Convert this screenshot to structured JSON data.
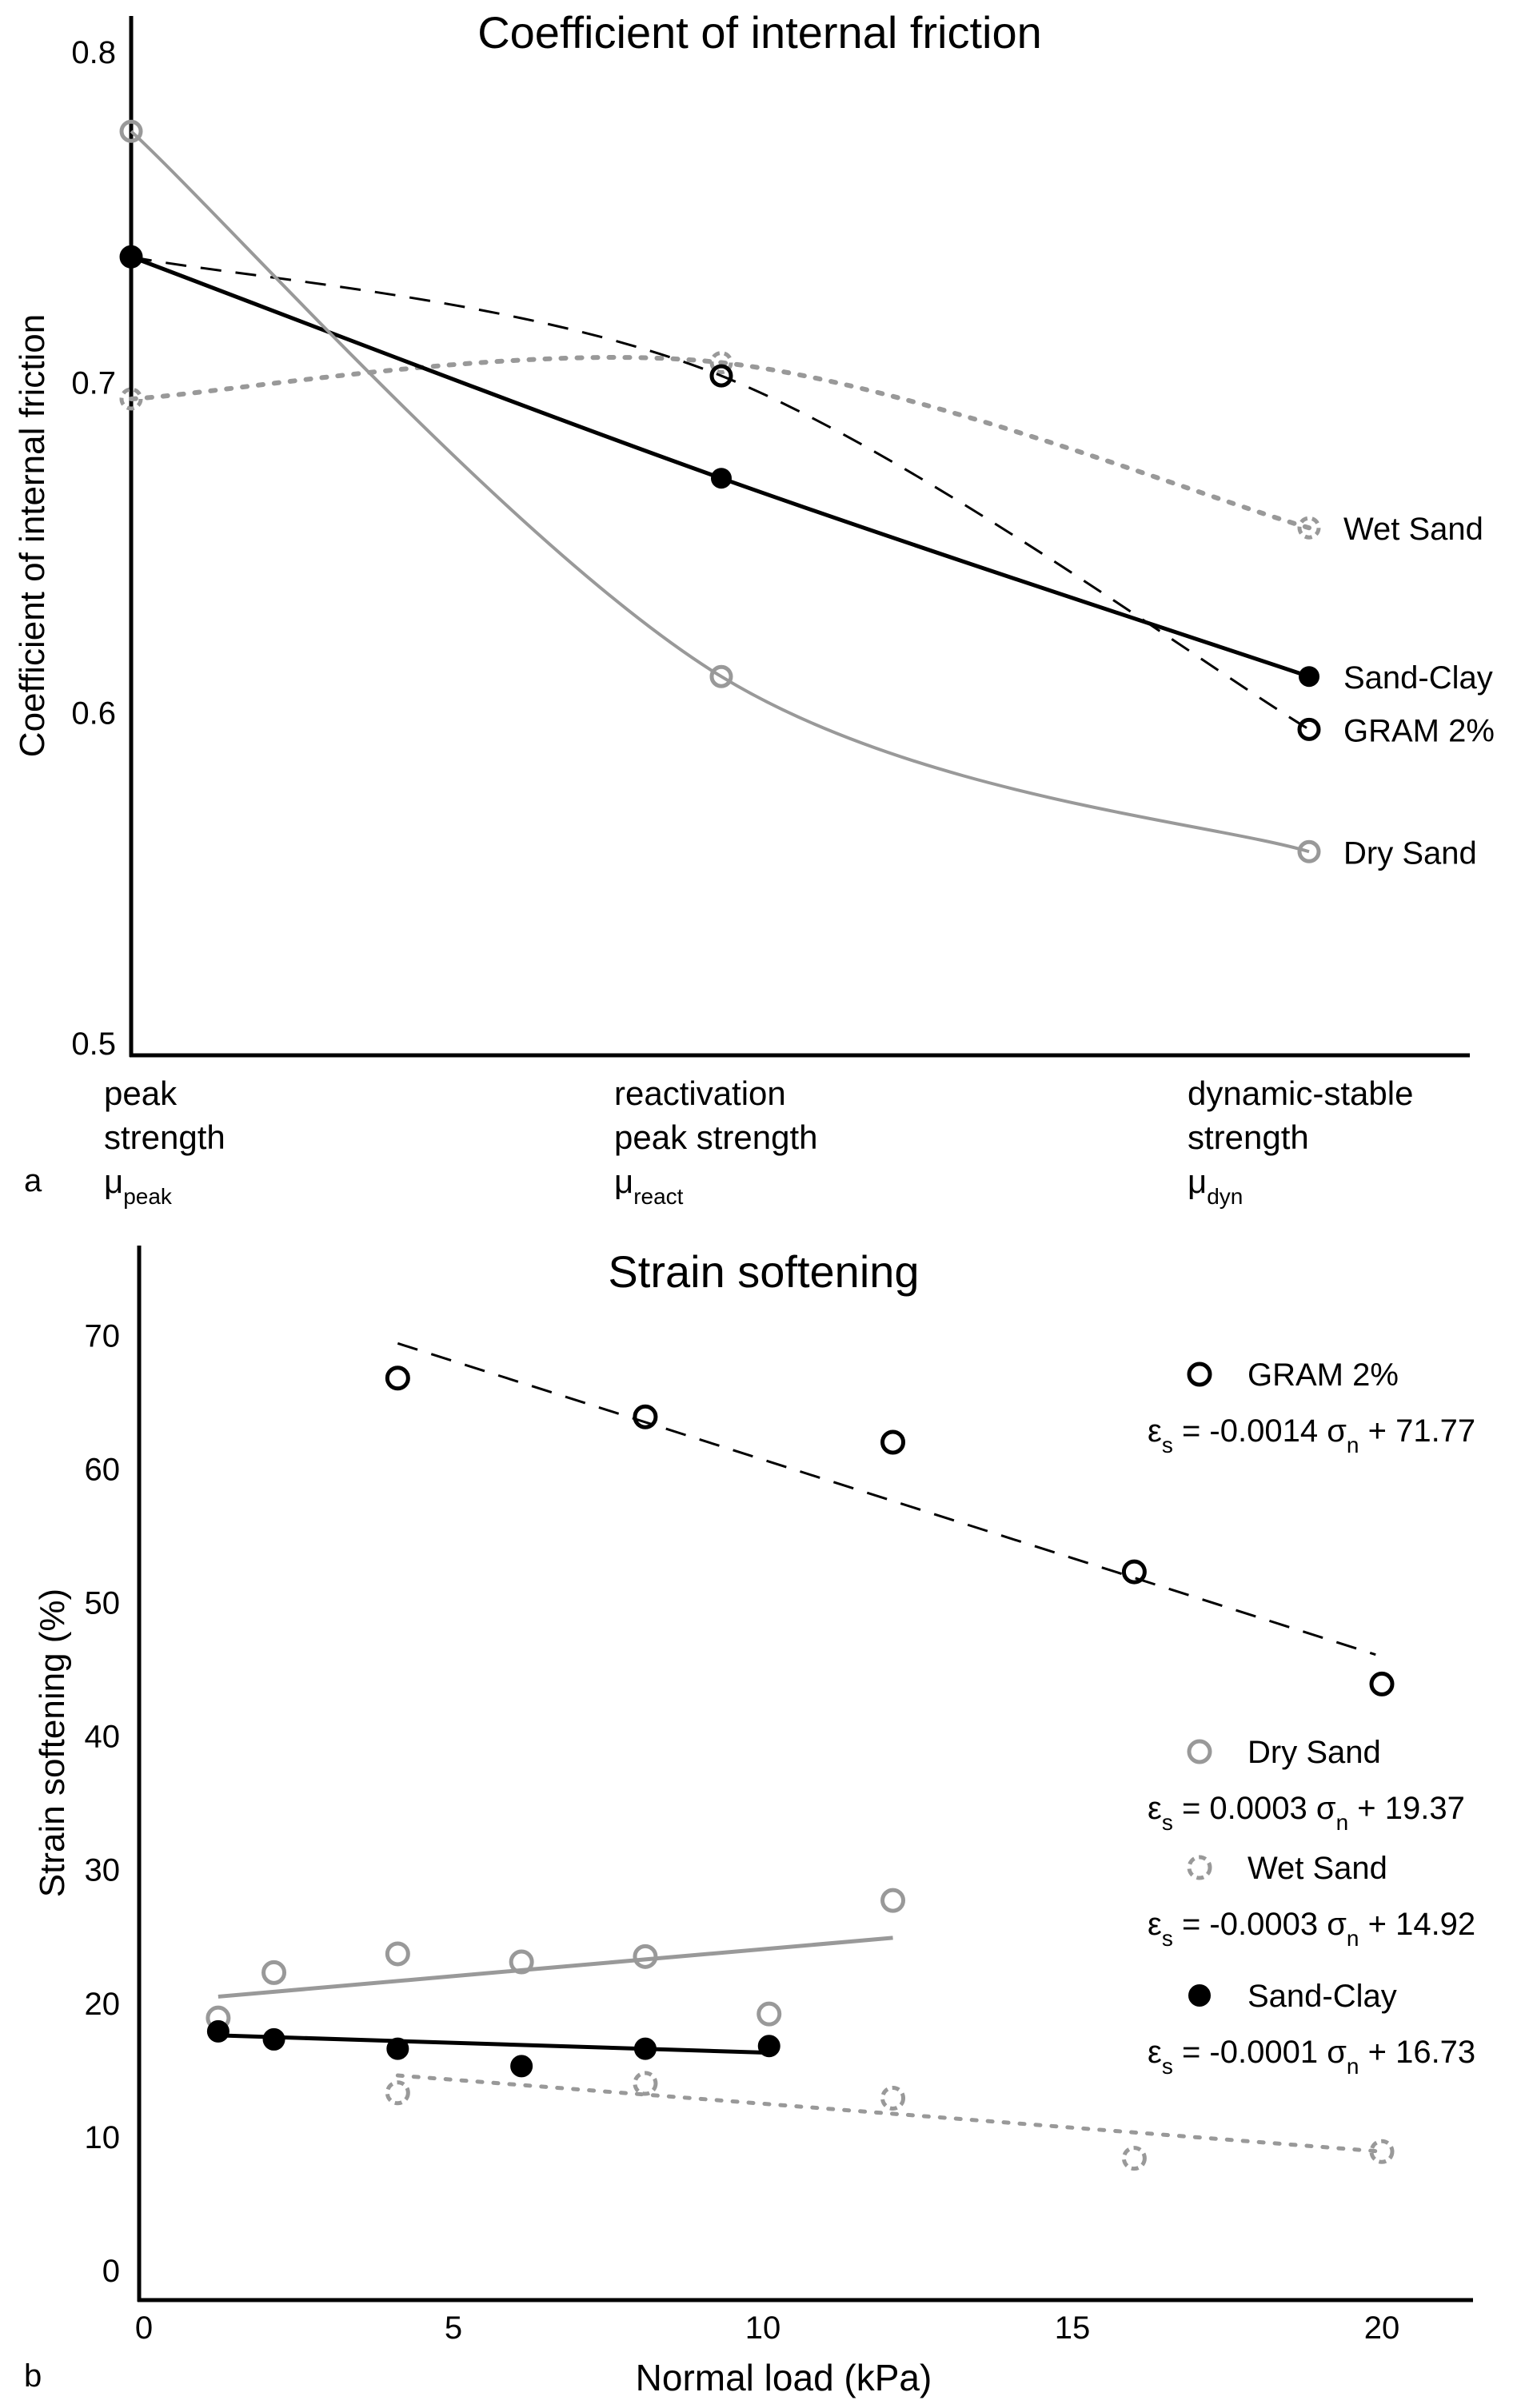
{
  "chart_data": [
    {
      "panel_label": "a",
      "type": "line",
      "title": "Coefficient of internal friction",
      "ylabel": "Coefficient of internal friction",
      "xlabel": "",
      "ylim": [
        0.5,
        0.8
      ],
      "yticks": [
        "0.5",
        "0.6",
        "0.7",
        "0.8"
      ],
      "ytick_values": [
        0.5,
        0.6,
        0.7,
        0.8
      ],
      "categories": [
        {
          "lines": [
            "peak",
            "strength"
          ],
          "symbol": "μ",
          "subscript": "peak"
        },
        {
          "lines": [
            "reactivation",
            "peak strength"
          ],
          "symbol": "μ",
          "subscript": "react"
        },
        {
          "lines": [
            "dynamic-stable",
            "strength"
          ],
          "symbol": "μ",
          "subscript": "dyn"
        }
      ],
      "legend_placement": "right (inline labels)",
      "series": [
        {
          "name": "Wet Sand",
          "values": [
            0.695,
            0.706,
            0.656
          ],
          "color": "#999999",
          "line": "dotted",
          "marker": "dashed-open-circle"
        },
        {
          "name": "Sand-Clay",
          "values": [
            0.738,
            0.671,
            0.611
          ],
          "color": "#000000",
          "line": "solid",
          "marker": "filled-circle"
        },
        {
          "name": "GRAM 2%",
          "values": [
            0.738,
            0.702,
            0.595
          ],
          "color": "#000000",
          "line": "dashed",
          "marker": "open-circle"
        },
        {
          "name": "Dry Sand",
          "values": [
            0.776,
            0.611,
            0.558
          ],
          "color": "#999999",
          "line": "solid",
          "marker": "open-circle"
        }
      ]
    },
    {
      "panel_label": "b",
      "type": "scatter",
      "title": "Strain softening",
      "xlabel": "Normal load (kPa)",
      "ylabel": "Strain softening (%)",
      "xlim": [
        0,
        21
      ],
      "ylim": [
        0,
        75
      ],
      "xticks": [
        0,
        5,
        10,
        15,
        20
      ],
      "yticks": [
        0,
        10,
        20,
        30,
        40,
        50,
        60,
        70
      ],
      "legend_placement": "right",
      "series": [
        {
          "name": "GRAM 2%",
          "equation": {
            "lhs": "ε",
            "lhs_sub": "s",
            "eq": " = -0.0014 σ",
            "var_sub": "n",
            "rest": " + 71.77"
          },
          "color": "#000000",
          "marker": "open-circle",
          "line": "dashed",
          "x": [
            4.1,
            8.1,
            12.1,
            16.0,
            20.0
          ],
          "y": [
            66.8,
            63.9,
            62.0,
            52.3,
            43.9
          ],
          "fit": {
            "x": [
              4.1,
              19.9
            ],
            "y": [
              69.4,
              46.1
            ]
          }
        },
        {
          "name": "Dry Sand",
          "equation": {
            "lhs": "ε",
            "lhs_sub": "s",
            "eq": " = 0.0003 σ",
            "var_sub": "n",
            "rest": " + 19.37"
          },
          "color": "#999999",
          "marker": "open-circle",
          "line": "solid",
          "x": [
            1.2,
            2.1,
            4.1,
            6.1,
            8.1,
            10.1,
            12.1
          ],
          "y": [
            18.9,
            22.3,
            23.7,
            23.1,
            23.5,
            19.2,
            27.7
          ],
          "fit": {
            "x": [
              1.2,
              12.1
            ],
            "y": [
              20.5,
              24.9
            ]
          }
        },
        {
          "name": "Wet Sand",
          "equation": {
            "lhs": "ε",
            "lhs_sub": "s",
            "eq": " = -0.0003 σ",
            "var_sub": "n",
            "rest": " + 14.92"
          },
          "color": "#999999",
          "marker": "dashed-open-circle",
          "line": "dotted",
          "x": [
            4.1,
            8.1,
            12.1,
            16.0,
            20.0
          ],
          "y": [
            13.3,
            14.0,
            12.9,
            8.4,
            8.9
          ],
          "fit": {
            "x": [
              4.1,
              20.0
            ],
            "y": [
              14.6,
              8.9
            ]
          }
        },
        {
          "name": "Sand-Clay",
          "equation": {
            "lhs": "ε",
            "lhs_sub": "s",
            "eq": " = -0.0001 σ",
            "var_sub": "n",
            "rest": " + 16.73"
          },
          "color": "#000000",
          "marker": "filled-circle",
          "line": "solid",
          "x": [
            1.2,
            2.1,
            4.1,
            6.1,
            8.1,
            10.1
          ],
          "y": [
            17.9,
            17.3,
            16.6,
            15.3,
            16.6,
            16.8
          ],
          "fit": {
            "x": [
              1.2,
              10.1
            ],
            "y": [
              17.6,
              16.3
            ]
          }
        }
      ]
    }
  ]
}
